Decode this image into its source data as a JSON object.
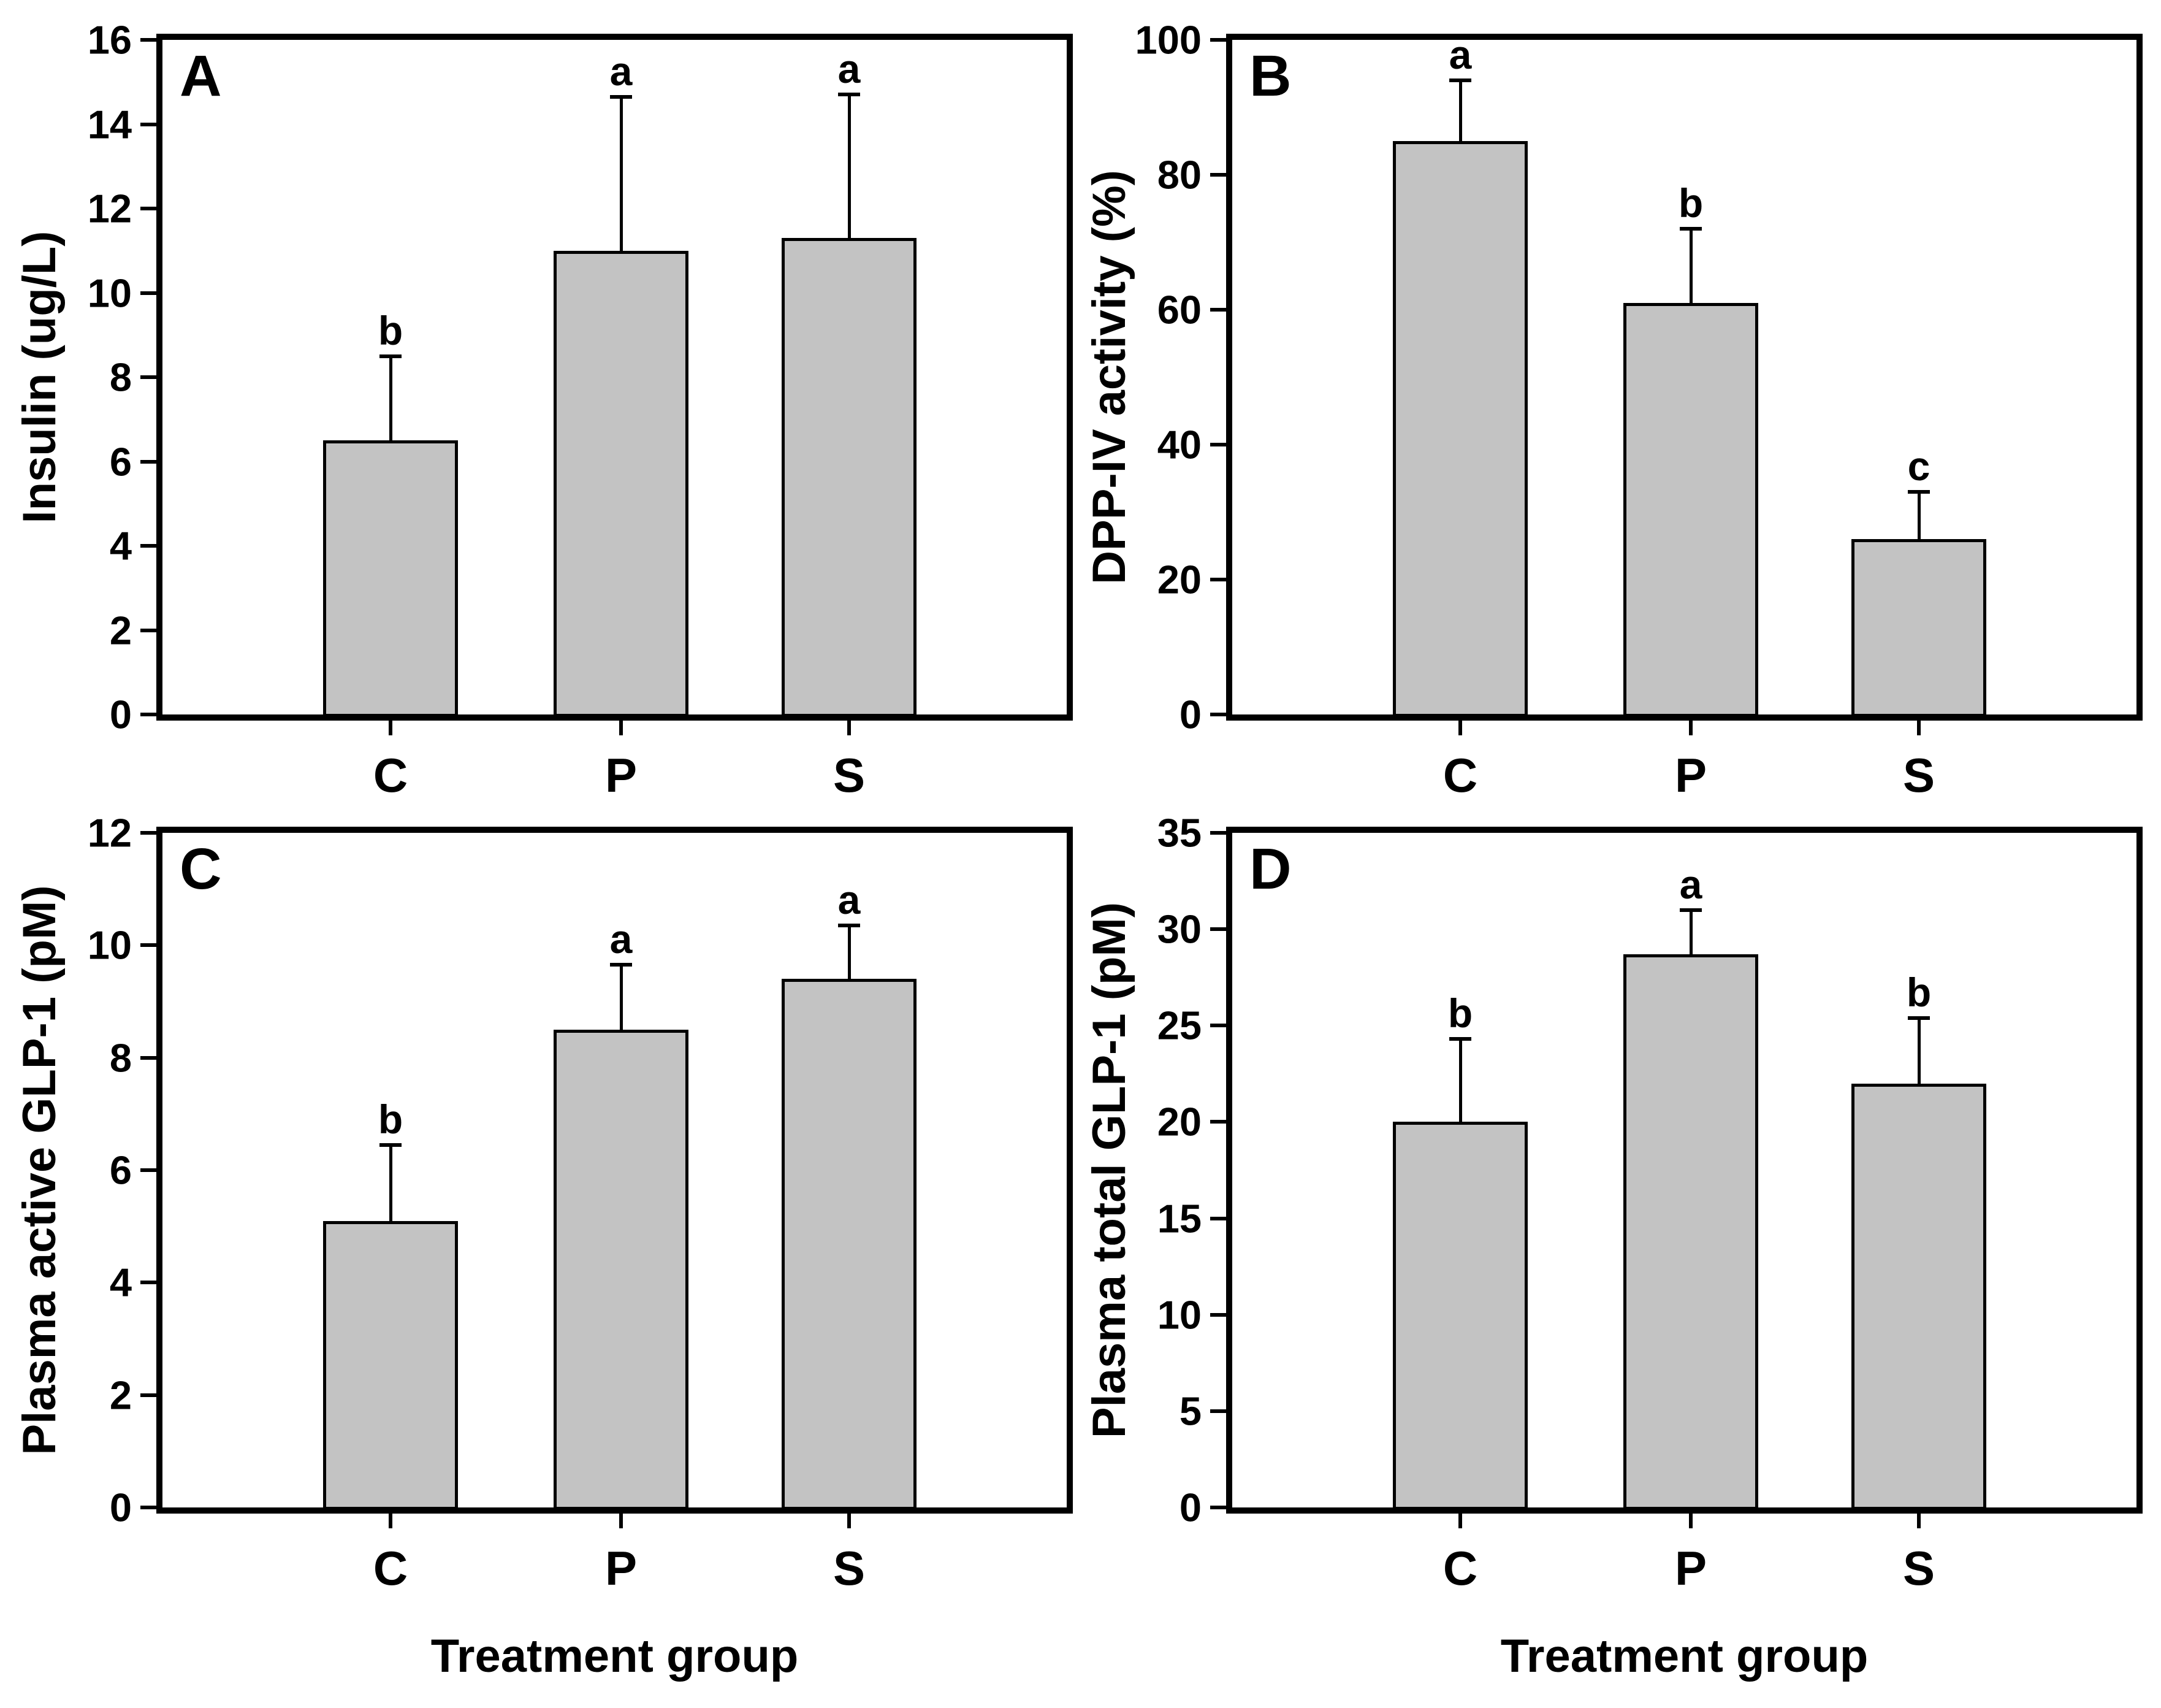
{
  "style": {
    "bar_fill": "#c3c3c3",
    "bar_edge": "#000000",
    "axis_color": "#000000",
    "background": "#ffffff"
  },
  "chart_data": [
    {
      "type": "bar",
      "panel_label": "A",
      "ylabel": "Insulin (ug/L)",
      "categories": [
        "C",
        "P",
        "S"
      ],
      "values": [
        6.5,
        11.0,
        11.3
      ],
      "errors_plus": [
        2.0,
        3.65,
        3.4
      ],
      "sig_letters": [
        "b",
        "a",
        "a"
      ],
      "ylim": [
        0,
        16
      ],
      "ytick_step": 2,
      "grid": false,
      "legend": "none"
    },
    {
      "type": "bar",
      "panel_label": "B",
      "ylabel": "DPP-IV activity (%)",
      "categories": [
        "C",
        "P",
        "S"
      ],
      "values": [
        85,
        61,
        26
      ],
      "errors_plus": [
        9,
        11,
        7
      ],
      "sig_letters": [
        "a",
        "b",
        "c"
      ],
      "ylim": [
        0,
        100
      ],
      "ytick_step": 20,
      "grid": false,
      "legend": "none"
    },
    {
      "type": "bar",
      "panel_label": "C",
      "ylabel": "Plasma active GLP-1 (pM)",
      "xlabel": "Treatment group",
      "categories": [
        "C",
        "P",
        "S"
      ],
      "values": [
        5.1,
        8.5,
        9.4
      ],
      "errors_plus": [
        1.35,
        1.15,
        0.95
      ],
      "sig_letters": [
        "b",
        "a",
        "a"
      ],
      "ylim": [
        0,
        12
      ],
      "ytick_step": 2,
      "grid": false,
      "legend": "none"
    },
    {
      "type": "bar",
      "panel_label": "D",
      "ylabel": "Plasma total GLP-1 (pM)",
      "xlabel": "Treatment group",
      "categories": [
        "C",
        "P",
        "S"
      ],
      "values": [
        20,
        28.7,
        22
      ],
      "errors_plus": [
        4.3,
        2.3,
        3.4
      ],
      "sig_letters": [
        "b",
        "a",
        "b"
      ],
      "ylim": [
        0,
        35
      ],
      "ytick_step": 5,
      "grid": false,
      "legend": "none"
    }
  ]
}
